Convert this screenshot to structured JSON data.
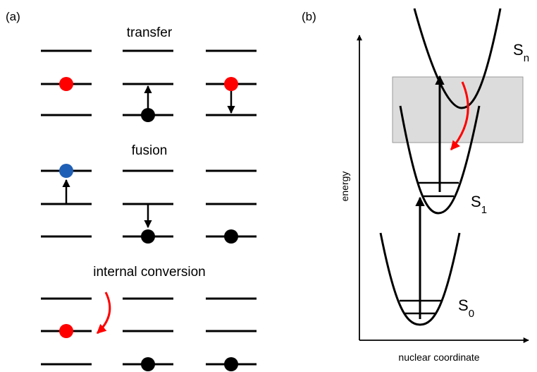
{
  "panel_a": {
    "label": "(a)",
    "sections": [
      {
        "title": "transfer"
      },
      {
        "title": "fusion"
      },
      {
        "title": "internal conversion"
      }
    ]
  },
  "panel_b": {
    "label": "(b)",
    "y_axis_label": "energy",
    "x_axis_label": "nuclear coordinate",
    "states": [
      {
        "letter": "S",
        "sub": "n"
      },
      {
        "letter": "S",
        "sub": "1"
      },
      {
        "letter": "S",
        "sub": "0"
      }
    ]
  },
  "colors": {
    "red": "#ff0000",
    "blue": "#1f5fb5",
    "black": "#000000",
    "shaded_region": "#dcdcdc",
    "shaded_border": "#9a9a9a"
  }
}
